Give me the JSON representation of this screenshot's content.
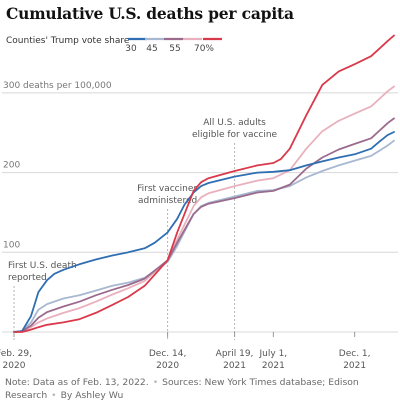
{
  "title": "Cumulative U.S. deaths per capita",
  "note": {
    "data": "Note: Data as of Feb. 13, 2022.",
    "sources": "Sources: New York Times database; Edison Research",
    "byline": "By Ashley Wu"
  },
  "chart_data": {
    "type": "line",
    "title": "Cumulative U.S. deaths per capita",
    "legend_title": "Counties' Trump vote share",
    "legend_placement": "top",
    "ylabel": "300 deaths per 100,000",
    "ylim": [
      0,
      370
    ],
    "xlim": [
      "2020-02-29",
      "2022-02-13"
    ],
    "grid": true,
    "y_ticks": [
      {
        "value": 100,
        "label": "100"
      },
      {
        "value": 200,
        "label": "200"
      },
      {
        "value": 300,
        "label": "300 deaths per 100,000"
      }
    ],
    "x_ticks": [
      {
        "date": "2020-02-29",
        "line1": "Feb. 29,",
        "line2": "2020"
      },
      {
        "date": "2020-12-14",
        "line1": "Dec. 14,",
        "line2": "2020"
      },
      {
        "date": "2021-04-19",
        "line1": "April 19,",
        "line2": "2021"
      },
      {
        "date": "2021-07-01",
        "line1": "July 1,",
        "line2": "2021"
      },
      {
        "date": "2021-12-01",
        "line1": "Dec. 1,",
        "line2": "2021"
      }
    ],
    "annotations": [
      {
        "date": "2020-02-29",
        "lines": [
          "First U.S. death",
          "reported"
        ]
      },
      {
        "date": "2020-12-14",
        "lines": [
          "First vaccines",
          "administered"
        ]
      },
      {
        "date": "2021-04-19",
        "lines": [
          "All U.S. adults",
          "eligible for vaccine"
        ]
      }
    ],
    "series": [
      {
        "name": "30",
        "color": "#2f6eb3",
        "points": [
          [
            "2020-02-29",
            0
          ],
          [
            "2020-03-15",
            1
          ],
          [
            "2020-04-01",
            20
          ],
          [
            "2020-04-15",
            50
          ],
          [
            "2020-05-01",
            65
          ],
          [
            "2020-05-15",
            73
          ],
          [
            "2020-06-01",
            78
          ],
          [
            "2020-07-01",
            85
          ],
          [
            "2020-08-01",
            91
          ],
          [
            "2020-09-01",
            96
          ],
          [
            "2020-10-01",
            100
          ],
          [
            "2020-11-01",
            105
          ],
          [
            "2020-11-20",
            112
          ],
          [
            "2020-12-14",
            125
          ],
          [
            "2021-01-01",
            142
          ],
          [
            "2021-01-15",
            160
          ],
          [
            "2021-02-01",
            175
          ],
          [
            "2021-02-15",
            183
          ],
          [
            "2021-03-01",
            187
          ],
          [
            "2021-04-19",
            195
          ],
          [
            "2021-06-01",
            200
          ],
          [
            "2021-07-01",
            201
          ],
          [
            "2021-08-01",
            203
          ],
          [
            "2021-09-01",
            209
          ],
          [
            "2021-10-01",
            214
          ],
          [
            "2021-11-01",
            219
          ],
          [
            "2021-12-01",
            223
          ],
          [
            "2022-01-01",
            230
          ],
          [
            "2022-01-15",
            238
          ],
          [
            "2022-02-01",
            247
          ],
          [
            "2022-02-13",
            251
          ]
        ]
      },
      {
        "name": "45",
        "color": "#a8b8d0",
        "points": [
          [
            "2020-02-29",
            0
          ],
          [
            "2020-03-15",
            1
          ],
          [
            "2020-04-01",
            12
          ],
          [
            "2020-04-15",
            28
          ],
          [
            "2020-05-01",
            35
          ],
          [
            "2020-06-01",
            42
          ],
          [
            "2020-07-01",
            46
          ],
          [
            "2020-08-01",
            52
          ],
          [
            "2020-09-01",
            58
          ],
          [
            "2020-10-01",
            62
          ],
          [
            "2020-11-01",
            68
          ],
          [
            "2020-12-14",
            88
          ],
          [
            "2021-01-01",
            108
          ],
          [
            "2021-02-01",
            148
          ],
          [
            "2021-02-15",
            158
          ],
          [
            "2021-03-01",
            162
          ],
          [
            "2021-04-19",
            170
          ],
          [
            "2021-06-01",
            177
          ],
          [
            "2021-07-01",
            178
          ],
          [
            "2021-08-01",
            183
          ],
          [
            "2021-09-01",
            194
          ],
          [
            "2021-10-01",
            202
          ],
          [
            "2021-11-01",
            209
          ],
          [
            "2021-12-01",
            215
          ],
          [
            "2022-01-01",
            221
          ],
          [
            "2022-02-01",
            234
          ],
          [
            "2022-02-13",
            240
          ]
        ]
      },
      {
        "name": "55",
        "color": "#9b6b8e",
        "points": [
          [
            "2020-02-29",
            0
          ],
          [
            "2020-03-15",
            1
          ],
          [
            "2020-04-01",
            8
          ],
          [
            "2020-04-15",
            18
          ],
          [
            "2020-05-01",
            25
          ],
          [
            "2020-06-01",
            32
          ],
          [
            "2020-07-01",
            38
          ],
          [
            "2020-08-01",
            46
          ],
          [
            "2020-09-01",
            53
          ],
          [
            "2020-10-01",
            59
          ],
          [
            "2020-11-01",
            67
          ],
          [
            "2020-12-14",
            90
          ],
          [
            "2021-01-01",
            112
          ],
          [
            "2021-02-01",
            148
          ],
          [
            "2021-02-15",
            157
          ],
          [
            "2021-03-01",
            161
          ],
          [
            "2021-04-19",
            168
          ],
          [
            "2021-06-01",
            175
          ],
          [
            "2021-07-01",
            177
          ],
          [
            "2021-08-01",
            185
          ],
          [
            "2021-09-01",
            205
          ],
          [
            "2021-10-01",
            219
          ],
          [
            "2021-11-01",
            229
          ],
          [
            "2021-12-01",
            236
          ],
          [
            "2022-01-01",
            243
          ],
          [
            "2022-02-01",
            262
          ],
          [
            "2022-02-13",
            268
          ]
        ]
      },
      {
        "name": "70%",
        "color": "#d9394b",
        "points": [
          [
            "2020-02-29",
            0
          ],
          [
            "2020-03-15",
            0
          ],
          [
            "2020-04-01",
            3
          ],
          [
            "2020-04-15",
            6
          ],
          [
            "2020-05-01",
            9
          ],
          [
            "2020-06-01",
            12
          ],
          [
            "2020-07-01",
            16
          ],
          [
            "2020-08-01",
            24
          ],
          [
            "2020-09-01",
            34
          ],
          [
            "2020-10-01",
            44
          ],
          [
            "2020-11-01",
            58
          ],
          [
            "2020-12-14",
            90
          ],
          [
            "2021-01-01",
            125
          ],
          [
            "2021-02-01",
            177
          ],
          [
            "2021-02-15",
            188
          ],
          [
            "2021-03-01",
            193
          ],
          [
            "2021-04-19",
            202
          ],
          [
            "2021-06-01",
            209
          ],
          [
            "2021-07-01",
            212
          ],
          [
            "2021-07-15",
            217
          ],
          [
            "2021-08-01",
            230
          ],
          [
            "2021-09-01",
            272
          ],
          [
            "2021-10-01",
            310
          ],
          [
            "2021-11-01",
            327
          ],
          [
            "2021-12-01",
            336
          ],
          [
            "2022-01-01",
            346
          ],
          [
            "2022-02-01",
            365
          ],
          [
            "2022-02-13",
            372
          ]
        ]
      },
      {
        "name": "",
        "color": "#e9b1bd",
        "points": [
          [
            "2020-02-29",
            0
          ],
          [
            "2020-03-15",
            1
          ],
          [
            "2020-04-01",
            6
          ],
          [
            "2020-04-15",
            12
          ],
          [
            "2020-05-01",
            17
          ],
          [
            "2020-06-01",
            24
          ],
          [
            "2020-07-01",
            30
          ],
          [
            "2020-08-01",
            38
          ],
          [
            "2020-09-01",
            47
          ],
          [
            "2020-10-01",
            55
          ],
          [
            "2020-11-01",
            64
          ],
          [
            "2020-12-14",
            90
          ],
          [
            "2021-01-01",
            116
          ],
          [
            "2021-02-01",
            158
          ],
          [
            "2021-02-15",
            169
          ],
          [
            "2021-03-01",
            174
          ],
          [
            "2021-04-19",
            183
          ],
          [
            "2021-06-01",
            190
          ],
          [
            "2021-07-01",
            193
          ],
          [
            "2021-08-01",
            203
          ],
          [
            "2021-09-01",
            230
          ],
          [
            "2021-10-01",
            252
          ],
          [
            "2021-11-01",
            265
          ],
          [
            "2021-12-01",
            274
          ],
          [
            "2022-01-01",
            283
          ],
          [
            "2022-02-01",
            302
          ],
          [
            "2022-02-13",
            308
          ]
        ]
      }
    ]
  }
}
